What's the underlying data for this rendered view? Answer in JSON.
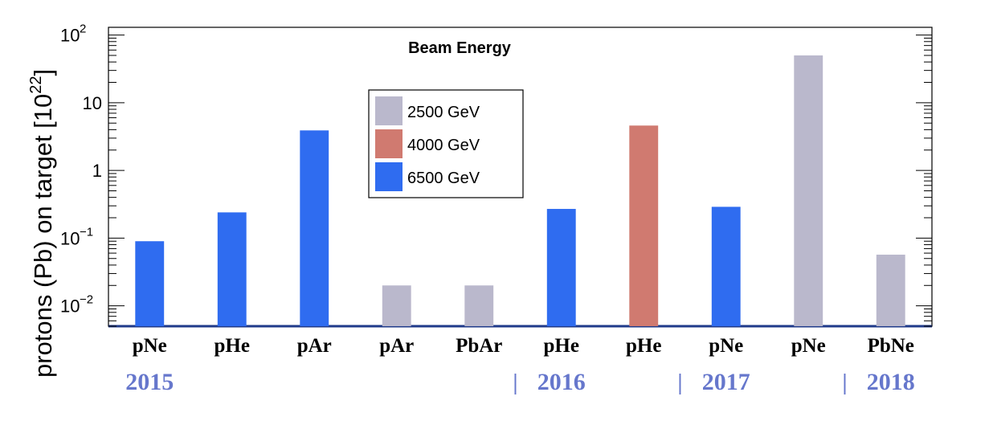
{
  "chart_data": {
    "type": "bar",
    "title": "Beam Energy",
    "ylabel": "protons (Pb) on target  [10",
    "ylabel_exp": "22",
    "ylabel_close": "]",
    "yscale": "log",
    "ylim": [
      0.005,
      130
    ],
    "yticks": [
      {
        "value": 0.01,
        "base": "10",
        "exp": "−2"
      },
      {
        "value": 0.1,
        "base": "10",
        "exp": "−1"
      },
      {
        "value": 1,
        "base": "1",
        "exp": ""
      },
      {
        "value": 10,
        "base": "10",
        "exp": ""
      },
      {
        "value": 100,
        "base": "10",
        "exp": "2"
      }
    ],
    "categories": [
      "pNe",
      "pHe",
      "pAr",
      "pAr",
      "PbAr",
      "pHe",
      "pHe",
      "pNe",
      "pNe",
      "PbNe"
    ],
    "values": [
      0.09,
      0.24,
      3.9,
      0.02,
      0.02,
      0.27,
      4.6,
      0.29,
      50,
      0.057
    ],
    "energies": [
      "6500 GeV",
      "6500 GeV",
      "6500 GeV",
      "2500 GeV",
      "2500 GeV",
      "6500 GeV",
      "4000 GeV",
      "6500 GeV",
      "2500 GeV",
      "2500 GeV"
    ],
    "legend": [
      {
        "label": "2500 GeV",
        "color": "#bab8cc"
      },
      {
        "label": "4000 GeV",
        "color": "#d07a70"
      },
      {
        "label": "6500 GeV",
        "color": "#2f6cf0"
      }
    ],
    "years": [
      {
        "label": "2015",
        "separator": false,
        "at_category": 0
      },
      {
        "label": "2016",
        "separator": true,
        "at_category": 5
      },
      {
        "label": "2017",
        "separator": true,
        "at_category": 7
      },
      {
        "label": "2018",
        "separator": true,
        "at_category": 9
      }
    ],
    "separator_glyph": "|",
    "colors": {
      "year_text": "#6677cc",
      "axis": "#000000",
      "baseline": "#1f3a8a"
    }
  }
}
